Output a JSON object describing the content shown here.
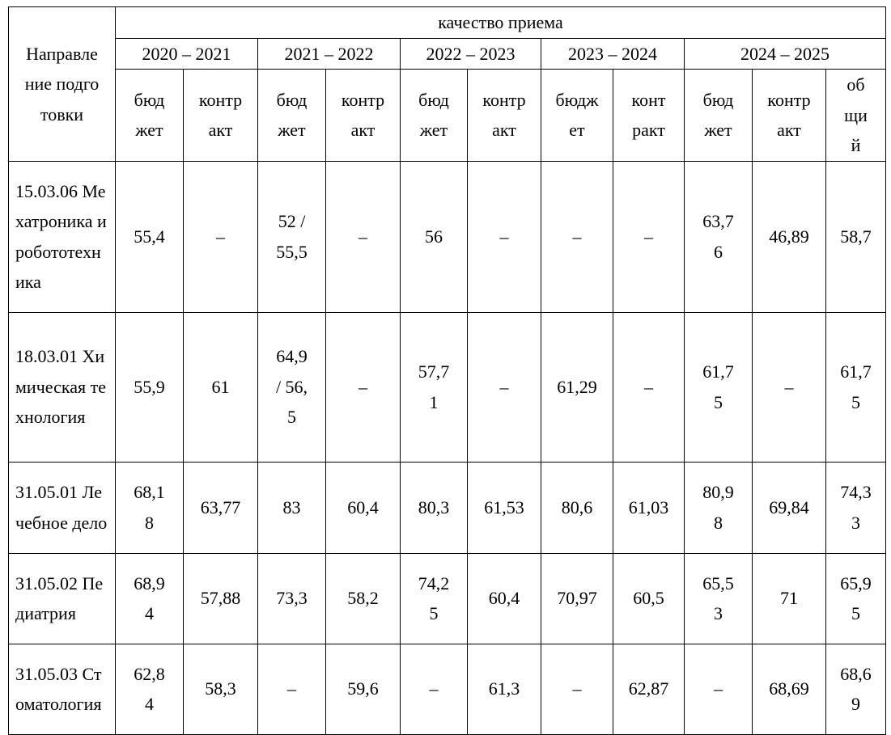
{
  "table": {
    "header": {
      "direction": "Направление подготовки",
      "group": "качество приема",
      "years": [
        "2020 – 2021",
        "2021 – 2022",
        "2022 – 2023",
        "2023 – 2024",
        "2024 – 2025"
      ],
      "subheaders": [
        [
          "бюджет",
          "контракт"
        ],
        [
          "бюджет",
          "контракт"
        ],
        [
          "бюджет",
          "контракт"
        ],
        [
          "бюджет",
          "контракт"
        ],
        [
          "бюджет",
          "контракт",
          "общий"
        ]
      ]
    },
    "rows": [
      {
        "program": "15.03.06 Мехатроника и робототехника",
        "values": [
          "55,4",
          "–",
          "52 / 55,5",
          "–",
          "56",
          "–",
          "–",
          "–",
          "63,76",
          "46,89",
          "58,7"
        ]
      },
      {
        "program": "18.03.01 Химическая технология",
        "values": [
          "55,9",
          "61",
          "64,9 / 56,5",
          "–",
          "57,71",
          "–",
          "61,29",
          "–",
          "61,75",
          "–",
          "61,75"
        ]
      },
      {
        "program": "31.05.01 Лечебное дело",
        "values": [
          "68,18",
          "63,77",
          "83",
          "60,4",
          "80,3",
          "61,53",
          "80,6",
          "61,03",
          "80,98",
          "69,84",
          "74,33"
        ]
      },
      {
        "program": "31.05.02 Педиатрия",
        "values": [
          "68,94",
          "57,88",
          "73,3",
          "58,2",
          "74,25",
          "60,4",
          "70,97",
          "60,5",
          "65,53",
          "71",
          "65,95"
        ]
      },
      {
        "program": "31.05.03 Стоматология",
        "values": [
          "62,84",
          "58,3",
          "–",
          "59,6",
          "–",
          "61,3",
          "–",
          "62,87",
          "–",
          "68,69",
          "68,69"
        ]
      }
    ]
  }
}
